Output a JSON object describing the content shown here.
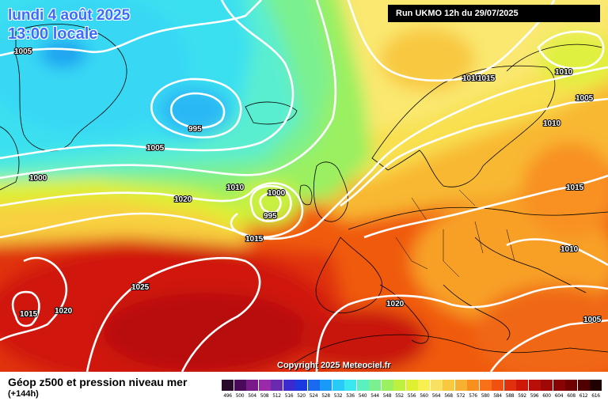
{
  "header": {
    "date": "lundi 4 août 2025",
    "time": "13:00 locale",
    "run": "Run UKMO 12h du 29/07/2025"
  },
  "copyright": "Copyright 2025 Meteociel.fr",
  "footer": {
    "title": "Géop z500 et pression niveau mer",
    "subtitle": "(+144h)"
  },
  "isobar_labels": [
    "1005",
    "995",
    "1005",
    "1000",
    "1010",
    "1000",
    "995",
    "1020",
    "1015",
    "1025",
    "1015",
    "1020",
    "1020",
    "1010",
    "1015",
    "1010",
    "1005",
    "1010",
    "1015",
    "1010",
    "1005",
    "1010"
  ],
  "legend": {
    "ticks": [
      "496",
      "500",
      "504",
      "508",
      "512",
      "516",
      "520",
      "524",
      "528",
      "532",
      "536",
      "540",
      "544",
      "548",
      "552",
      "556",
      "560",
      "564",
      "568",
      "572",
      "576",
      "580",
      "584",
      "588",
      "592",
      "596",
      "600",
      "604",
      "608",
      "612",
      "616"
    ],
    "colors": [
      "#2a0a2a",
      "#4a0a5a",
      "#7a1a8a",
      "#9a2aaa",
      "#6a2ab0",
      "#3a2ad0",
      "#1a3ae0",
      "#1a6af0",
      "#1a9af8",
      "#2acaf8",
      "#3ae8f0",
      "#5af0c0",
      "#7af090",
      "#9af060",
      "#bef040",
      "#def030",
      "#f8f050",
      "#f8e060",
      "#f8c840",
      "#f8b030",
      "#f89020",
      "#f87018",
      "#f05010",
      "#e03010",
      "#d01808",
      "#b81008",
      "#a00808",
      "#880404",
      "#700000",
      "#500000",
      "#200000"
    ]
  },
  "colors": {
    "header_text": "#3a6cff",
    "run_bg": "#000000",
    "isobar": "#ffffff"
  }
}
